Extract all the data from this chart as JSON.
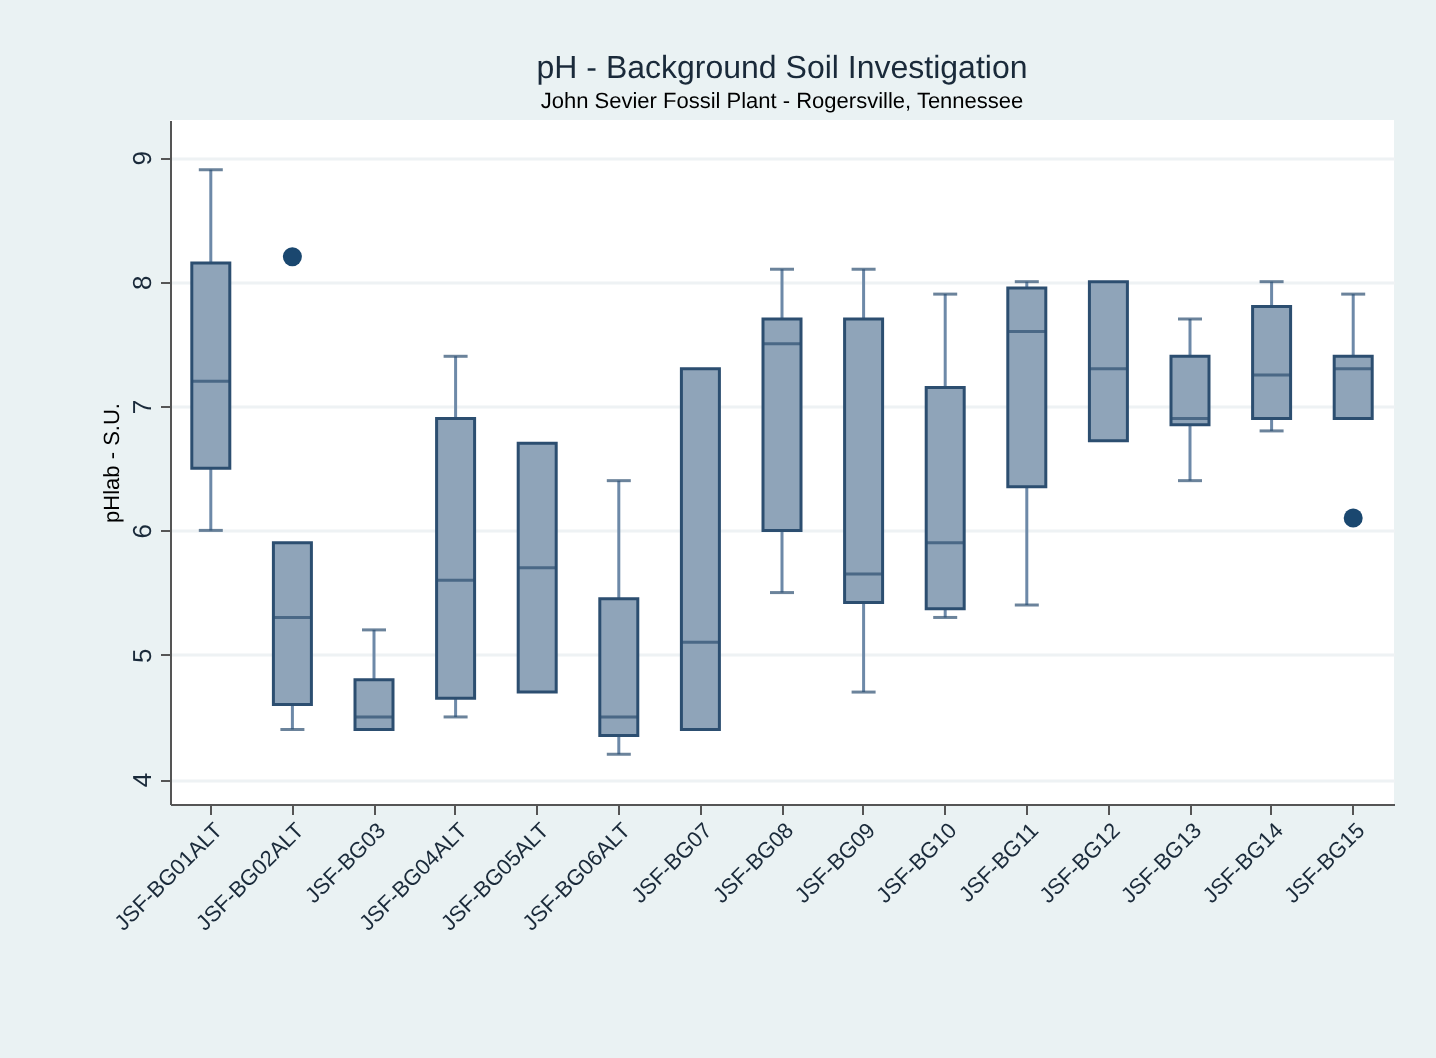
{
  "chart_data": {
    "type": "box",
    "title": "pH - Background Soil Investigation",
    "subtitle": "John Sevier Fossil Plant - Rogersville, Tennessee",
    "ylabel": "pHlab - S.U.",
    "categories": [
      "JSF-BG01ALT",
      "JSF-BG02ALT",
      "JSF-BG03",
      "JSF-BG04ALT",
      "JSF-BG05ALT",
      "JSF-BG06ALT",
      "JSF-BG07",
      "JSF-BG08",
      "JSF-BG09",
      "JSF-BG10",
      "JSF-BG11",
      "JSF-BG12",
      "JSF-BG13",
      "JSF-BG14",
      "JSF-BG15"
    ],
    "series": [
      {
        "color": "#8fa4b9",
        "boxes": [
          {
            "low": 6.0,
            "q1": 6.5,
            "median": 7.2,
            "q3": 8.15,
            "high": 8.9
          },
          {
            "low": 4.4,
            "q1": 4.6,
            "median": 5.3,
            "q3": 5.9,
            "high": 5.9,
            "outliers": [
              8.2
            ]
          },
          {
            "low": 4.4,
            "q1": 4.4,
            "median": 4.5,
            "q3": 4.8,
            "high": 5.2
          },
          {
            "low": 4.5,
            "q1": 4.65,
            "median": 5.6,
            "q3": 6.9,
            "high": 7.4
          },
          {
            "low": 4.7,
            "q1": 4.7,
            "median": 5.7,
            "q3": 6.7,
            "high": 6.7
          },
          {
            "low": 4.2,
            "q1": 4.35,
            "median": 4.5,
            "q3": 5.45,
            "high": 6.4
          },
          {
            "low": 4.4,
            "q1": 4.4,
            "median": 5.1,
            "q3": 7.3,
            "high": 7.3
          },
          {
            "low": 5.5,
            "q1": 6.0,
            "median": 7.5,
            "q3": 7.7,
            "high": 8.1
          },
          {
            "low": 4.7,
            "q1": 5.42,
            "median": 5.65,
            "q3": 7.7,
            "high": 8.1
          },
          {
            "low": 5.3,
            "q1": 5.37,
            "median": 5.9,
            "q3": 7.15,
            "high": 7.9
          },
          {
            "low": 5.4,
            "q1": 6.35,
            "median": 7.6,
            "q3": 7.95,
            "high": 8.0
          },
          {
            "low": 6.72,
            "q1": 6.72,
            "median": 7.3,
            "q3": 8.0,
            "high": 8.0
          },
          {
            "low": 6.4,
            "q1": 6.85,
            "median": 6.9,
            "q3": 7.4,
            "high": 7.7
          },
          {
            "low": 6.8,
            "q1": 6.9,
            "median": 7.25,
            "q3": 7.8,
            "high": 8.0
          },
          {
            "low": 6.9,
            "q1": 6.9,
            "median": 7.3,
            "q3": 7.4,
            "high": 7.9,
            "outliers": [
              6.1
            ]
          }
        ]
      }
    ],
    "ylim": [
      3.8,
      9.3
    ],
    "yticks": [
      4,
      5,
      6,
      7,
      8,
      9
    ],
    "grid": "y"
  }
}
